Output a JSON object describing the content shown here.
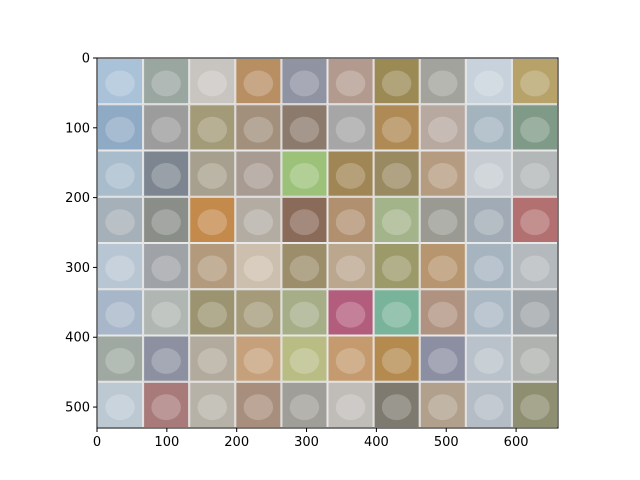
{
  "chart_data": {
    "type": "heatmap",
    "description_kind": "image-grid",
    "title": "",
    "xlabel": "",
    "ylabel": "",
    "xlim": [
      0,
      660
    ],
    "ylim": [
      530,
      0
    ],
    "grid": false,
    "grid_rows": 8,
    "grid_cols": 10,
    "x_ticks": [
      {
        "value": 0,
        "label": "0"
      },
      {
        "value": 100,
        "label": "100"
      },
      {
        "value": 200,
        "label": "200"
      },
      {
        "value": 300,
        "label": "300"
      },
      {
        "value": 400,
        "label": "400"
      },
      {
        "value": 500,
        "label": "500"
      },
      {
        "value": 600,
        "label": "600"
      }
    ],
    "y_ticks": [
      {
        "value": 0,
        "label": "0"
      },
      {
        "value": 100,
        "label": "100"
      },
      {
        "value": 200,
        "label": "200"
      },
      {
        "value": 300,
        "label": "300"
      },
      {
        "value": 400,
        "label": "400"
      },
      {
        "value": 500,
        "label": "500"
      }
    ],
    "tile_colors": [
      [
        "#a9c2d8",
        "#9aa6a0",
        "#c8c4c0",
        "#b88f63",
        "#8f93a2",
        "#b39a8e",
        "#9c8a55",
        "#a2a39c",
        "#c7d2dc",
        "#b7a36a"
      ],
      [
        "#8faac5",
        "#9c9c9c",
        "#a39a78",
        "#a2907c",
        "#8c7a6c",
        "#a6a6a6",
        "#b08a55",
        "#b8a9a0",
        "#a3b4bf",
        "#7f9a86"
      ],
      [
        "#a8bccc",
        "#7d8690",
        "#a8a08e",
        "#a89c92",
        "#9cc27a",
        "#a08654",
        "#9a8a62",
        "#b59c80",
        "#c6ccd2",
        "#b3b7b8"
      ],
      [
        "#a6b0b8",
        "#8a8e88",
        "#c48a4c",
        "#b3aca3",
        "#8a6a58",
        "#b19070",
        "#a4b48a",
        "#9a9a92",
        "#a0abb5",
        "#b27070"
      ],
      [
        "#b8c6d4",
        "#9fa2a6",
        "#b39a7c",
        "#cdbfae",
        "#9c8e6a",
        "#bba68e",
        "#9d9a6a",
        "#b7956e",
        "#a6b4c0",
        "#b4b9bd"
      ],
      [
        "#a7b6c8",
        "#b0b6b2",
        "#9c9470",
        "#a59b7a",
        "#a6ae88",
        "#b35d7c",
        "#79b49a",
        "#b09280",
        "#aab8c4",
        "#9fa4a8"
      ],
      [
        "#9fa9a2",
        "#8c90a0",
        "#b2aa9c",
        "#c6a07a",
        "#b9bd84",
        "#c49a6e",
        "#b48a4e",
        "#8c8ea2",
        "#b9c2ca",
        "#b0b2b0"
      ],
      [
        "#bcc8d2",
        "#a87a7a",
        "#b7b2a8",
        "#a88e7c",
        "#a09e98",
        "#c0bcb8",
        "#7e7a70",
        "#b0a08c",
        "#b4bcc6",
        "#8e8e70"
      ]
    ]
  }
}
